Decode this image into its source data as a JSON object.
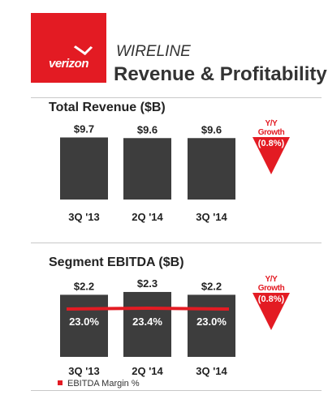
{
  "header": {
    "logo_text": "verizon",
    "subtitle": "WIRELINE",
    "title": "Revenue & Profitability"
  },
  "colors": {
    "bar": "#3d3d3d",
    "accent": "#e31b23"
  },
  "chart_data": [
    {
      "type": "bar",
      "title": "Total Revenue ($B)",
      "categories": [
        "3Q '13",
        "2Q '14",
        "3Q '14"
      ],
      "values": [
        9.7,
        9.6,
        9.6
      ],
      "value_labels": [
        "$9.7",
        "$9.6",
        "$9.6"
      ],
      "growth": {
        "label": "Y/Y Growth",
        "value": "(0.8%)"
      }
    },
    {
      "type": "bar",
      "title": "Segment EBITDA ($B)",
      "categories": [
        "3Q '13",
        "2Q '14",
        "3Q '14"
      ],
      "values": [
        2.2,
        2.3,
        2.2
      ],
      "value_labels": [
        "$2.2",
        "$2.3",
        "$2.2"
      ],
      "line_series": {
        "name": "EBITDA Margin %",
        "values": [
          23.0,
          23.4,
          23.0
        ],
        "labels": [
          "23.0%",
          "23.4%",
          "23.0%"
        ]
      },
      "growth": {
        "label": "Y/Y Growth",
        "value": "(0.8%)"
      },
      "legend": [
        "EBITDA Margin %"
      ]
    }
  ]
}
